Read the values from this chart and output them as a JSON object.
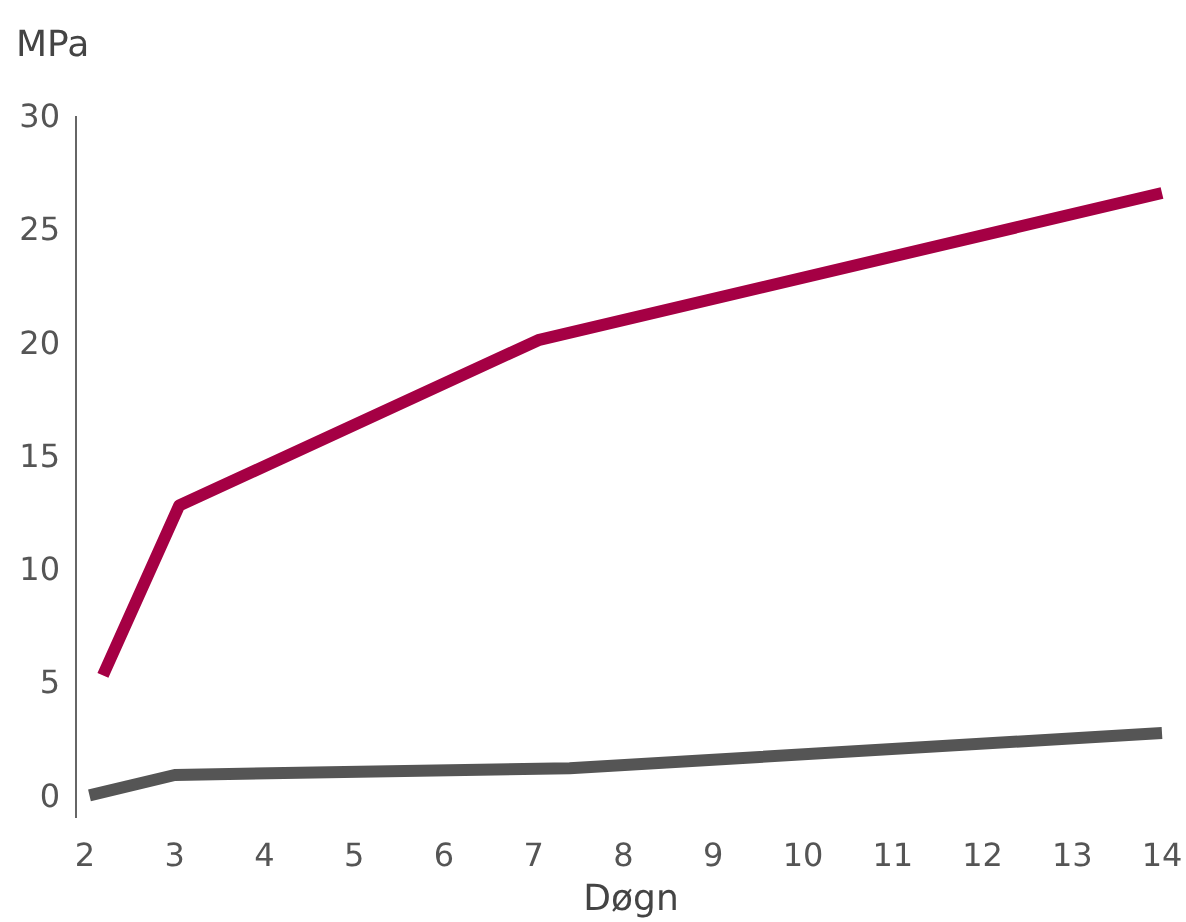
{
  "chart_data": {
    "type": "line",
    "ylabel": "MPa",
    "xlabel": "Døgn",
    "xlim": [
      1.9,
      14
    ],
    "xticks": [
      2,
      3,
      4,
      5,
      6,
      7,
      8,
      9,
      10,
      11,
      12,
      13,
      14
    ],
    "ylim": [
      -1,
      30
    ],
    "yticks": [
      0,
      5,
      10,
      15,
      20,
      25,
      30
    ],
    "grid": false,
    "line_style": "solid",
    "marker": "none",
    "series": [
      {
        "color": "#a50044",
        "x": [
          2.2,
          3.05,
          7.05,
          14
        ],
        "values": [
          5.3,
          12.8,
          20.1,
          26.6
        ]
      },
      {
        "color": "#555555",
        "x": [
          2.05,
          3,
          7.4,
          14
        ],
        "values": [
          0,
          0.9,
          1.2,
          2.75
        ]
      }
    ]
  }
}
